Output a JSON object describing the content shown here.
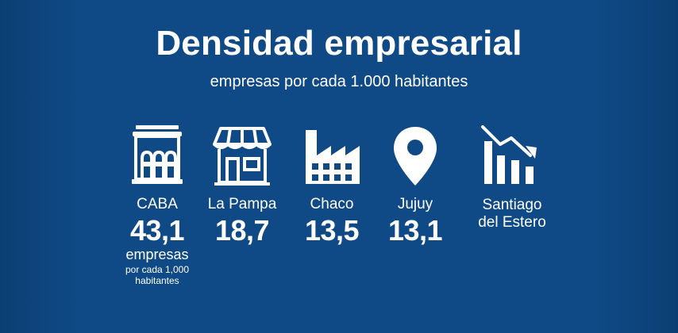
{
  "header": {
    "title": "Densidad empresarial",
    "subtitle": "empresas por cada 1.000 habitantes"
  },
  "items": [
    {
      "name": "CABA",
      "icon": "building-columns-icon",
      "value": "43,1",
      "unit_main": "empresas",
      "unit_small_line1": "por cada 1,000",
      "unit_small_line2": "habitantes"
    },
    {
      "name": "La Pampa",
      "icon": "storefront-icon",
      "value": "18,7"
    },
    {
      "name": "Chaco",
      "icon": "factory-icon",
      "value": "13,5"
    },
    {
      "name": "Jujuy",
      "icon": "map-pin-icon",
      "value": "13,1"
    },
    {
      "name_line1": "Santiago",
      "name_line2": "del Estero",
      "icon": "declining-bar-chart-icon"
    }
  ],
  "colors": {
    "background": "#0f4a86",
    "text": "#ffffff",
    "icon": "#ffffff"
  }
}
